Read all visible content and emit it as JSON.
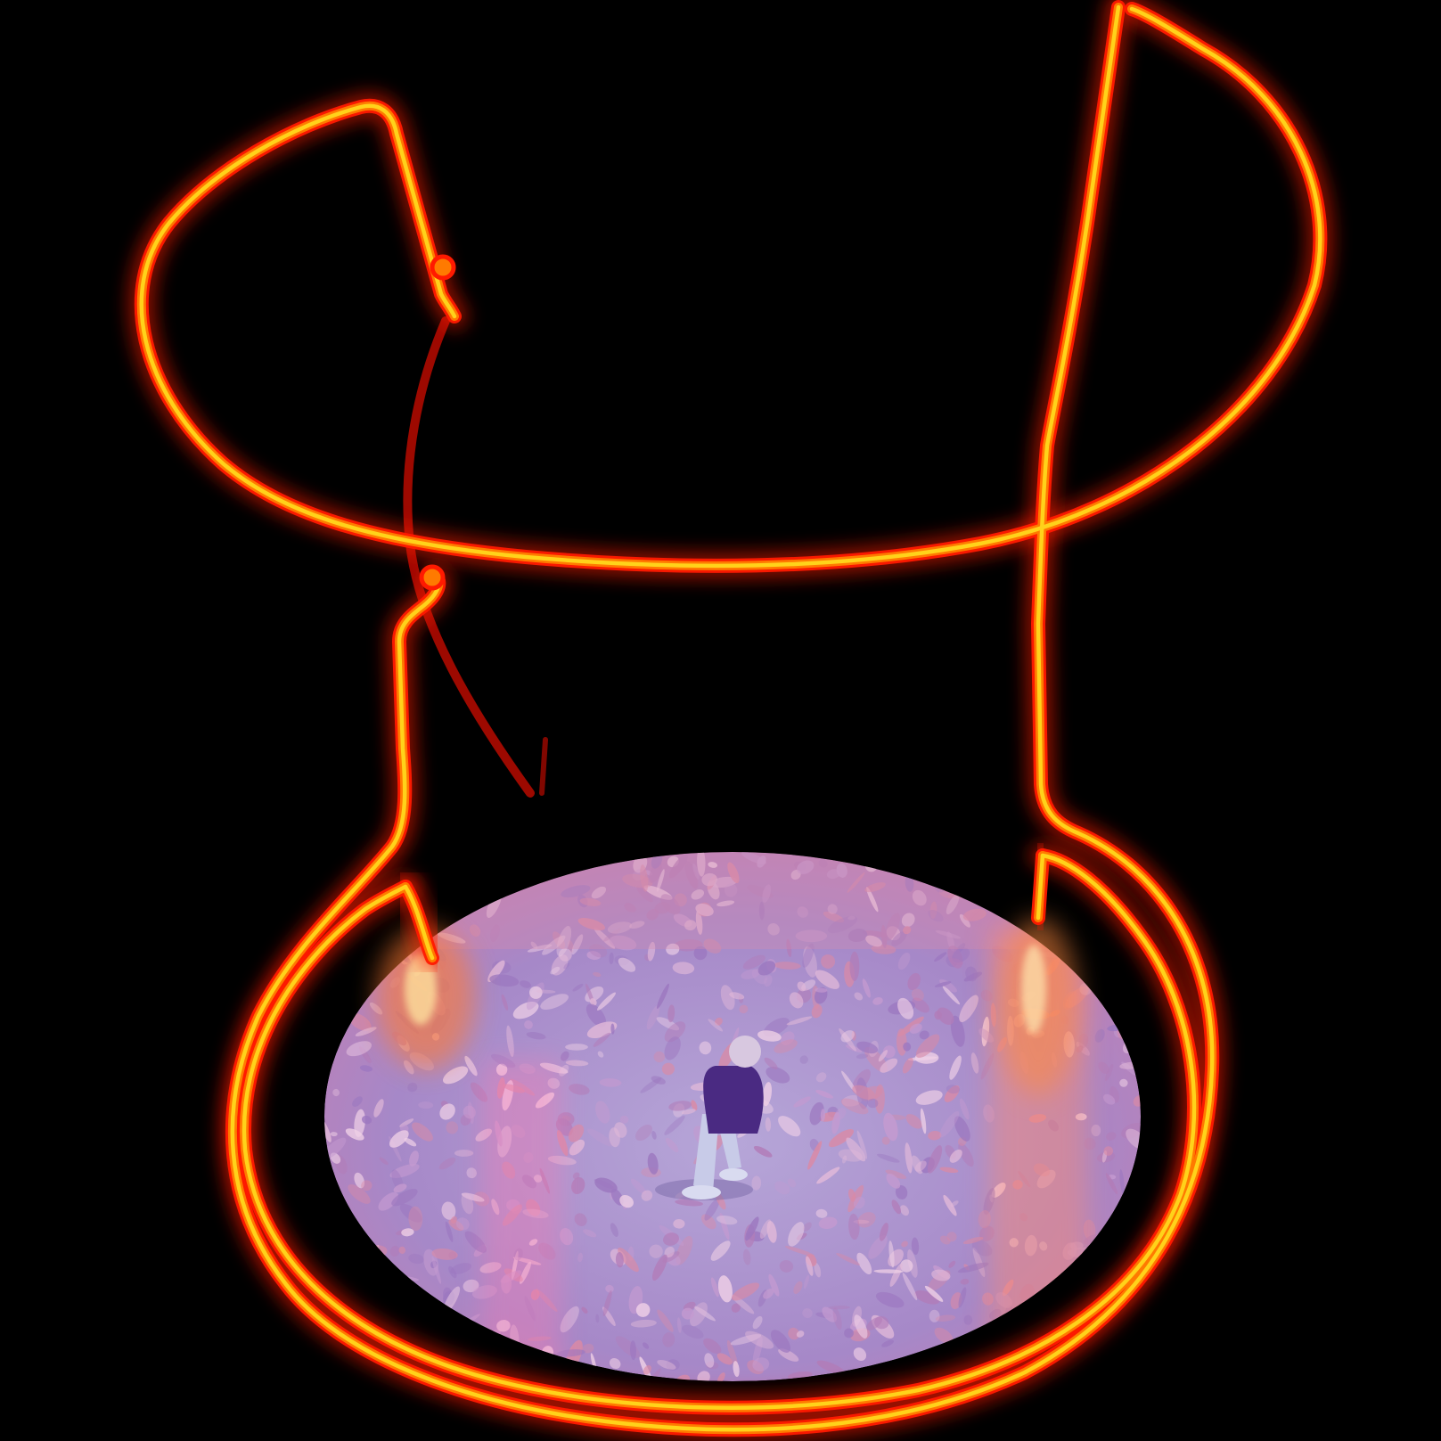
{
  "scene": {
    "background_color": "#000000",
    "neon_core_color": "#ffd21a",
    "neon_mid_color": "#ff7a00",
    "neon_glow_color": "#ff1a00",
    "projection_base_color": "#a98cc9",
    "projection_tint_color": "#d88aa8",
    "leaf_colors": [
      "#c49ad0",
      "#e0b8d8",
      "#b27cb8",
      "#d98aa6",
      "#9c78c0",
      "#efd0e6"
    ],
    "figure_jacket_color": "#4a2a82",
    "figure_pants_color": "#c8cbe8"
  }
}
